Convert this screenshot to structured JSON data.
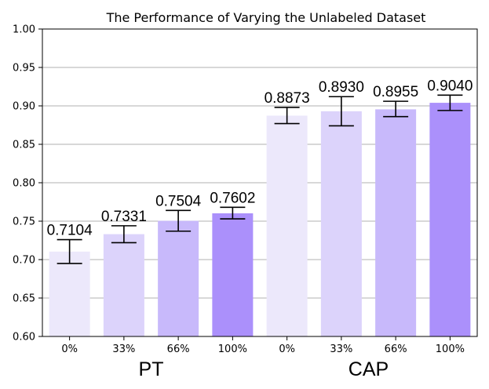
{
  "chart_data": {
    "type": "bar",
    "title": "The Performance of Varying the Unlabeled Dataset",
    "xlabel": "",
    "ylabel": "",
    "ylim": [
      0.6,
      1.0
    ],
    "yticks": [
      "0.60",
      "0.65",
      "0.70",
      "0.75",
      "0.80",
      "0.85",
      "0.90",
      "0.95",
      "1.00"
    ],
    "grid": "horizontal",
    "groups": [
      {
        "name": "PT",
        "categories": [
          "0%",
          "33%",
          "66%",
          "100%"
        ]
      },
      {
        "name": "CAP",
        "categories": [
          "0%",
          "33%",
          "66%",
          "100%"
        ]
      }
    ],
    "bars": [
      {
        "group": "PT",
        "category": "0%",
        "value": 0.7104,
        "label": "0.7104",
        "err_low": 0.695,
        "err_high": 0.726,
        "color": "#ece8fb"
      },
      {
        "group": "PT",
        "category": "33%",
        "value": 0.7331,
        "label": "0.7331",
        "err_low": 0.722,
        "err_high": 0.744,
        "color": "#dcd3fb"
      },
      {
        "group": "PT",
        "category": "66%",
        "value": 0.7504,
        "label": "0.7504",
        "err_low": 0.737,
        "err_high": 0.764,
        "color": "#c8b9fb"
      },
      {
        "group": "PT",
        "category": "100%",
        "value": 0.7602,
        "label": "0.7602",
        "err_low": 0.753,
        "err_high": 0.768,
        "color": "#ab90fb"
      },
      {
        "group": "CAP",
        "category": "0%",
        "value": 0.8873,
        "label": "0.8873",
        "err_low": 0.877,
        "err_high": 0.898,
        "color": "#ece8fb"
      },
      {
        "group": "CAP",
        "category": "33%",
        "value": 0.893,
        "label": "0.8930",
        "err_low": 0.874,
        "err_high": 0.912,
        "color": "#dcd3fb"
      },
      {
        "group": "CAP",
        "category": "66%",
        "value": 0.8955,
        "label": "0.8955",
        "err_low": 0.886,
        "err_high": 0.906,
        "color": "#c8b9fb"
      },
      {
        "group": "CAP",
        "category": "100%",
        "value": 0.904,
        "label": "0.9040",
        "err_low": 0.894,
        "err_high": 0.914,
        "color": "#ab90fb"
      }
    ]
  }
}
